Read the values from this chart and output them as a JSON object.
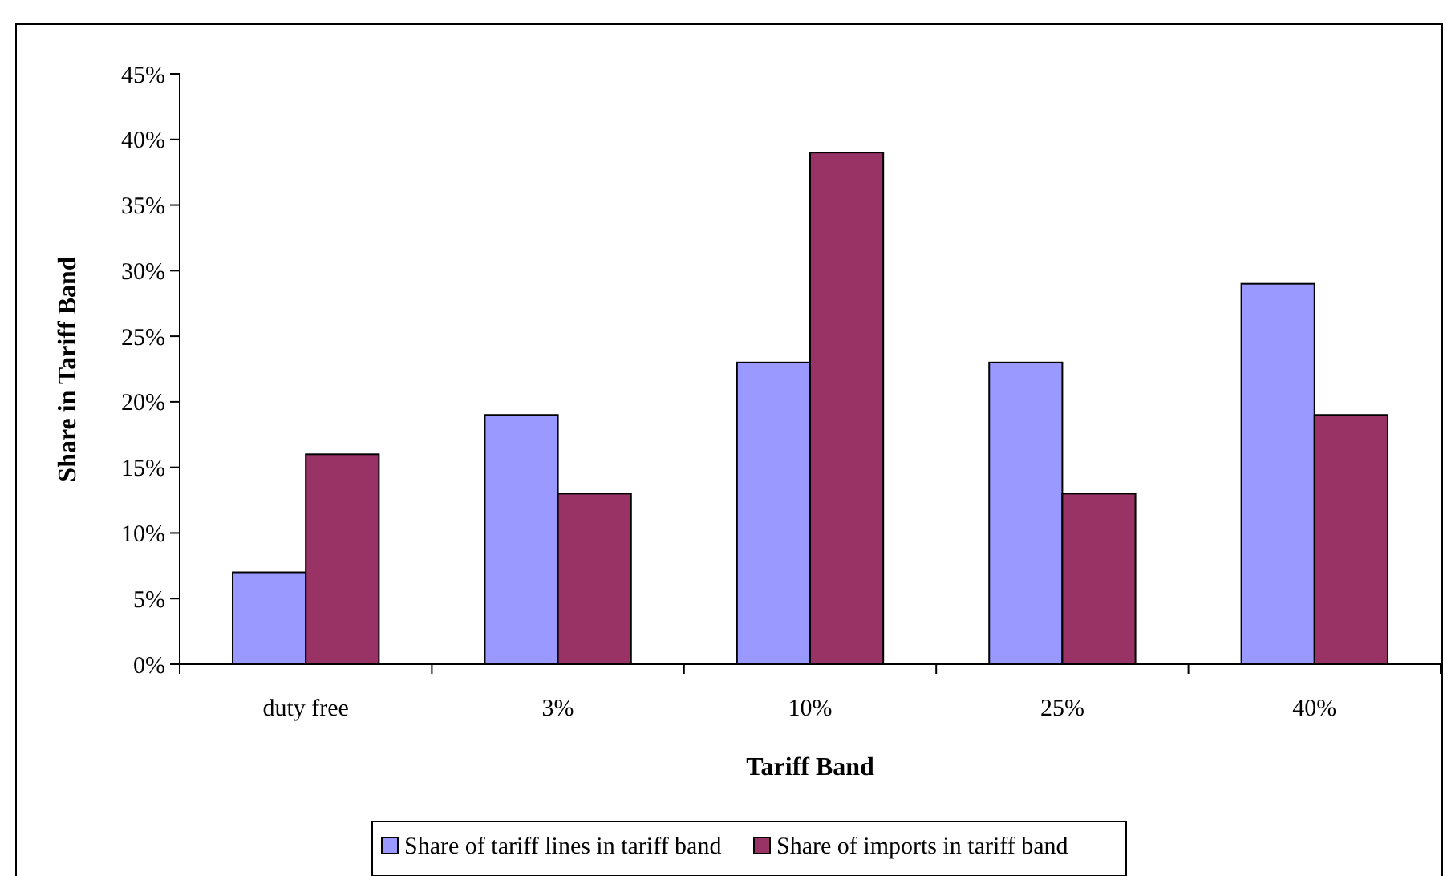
{
  "chart_data": {
    "type": "bar",
    "xlabel": "Tariff Band",
    "ylabel": "Share in Tariff Band",
    "categories": [
      "duty free",
      "3%",
      "10%",
      "25%",
      "40%"
    ],
    "series": [
      {
        "name": "Share of tariff lines in tariff band",
        "color": "#9999ff",
        "values": [
          7,
          19,
          23,
          23,
          29
        ]
      },
      {
        "name": "Share of imports in tariff band",
        "color": "#993366",
        "values": [
          16,
          13,
          39,
          13,
          19
        ]
      }
    ],
    "ylim": [
      0,
      45
    ],
    "yticks": [
      {
        "value": 0,
        "label": "0%"
      },
      {
        "value": 5,
        "label": "5%"
      },
      {
        "value": 10,
        "label": "10%"
      },
      {
        "value": 15,
        "label": "15%"
      },
      {
        "value": 20,
        "label": "20%"
      },
      {
        "value": 25,
        "label": "25%"
      },
      {
        "value": 30,
        "label": "30%"
      },
      {
        "value": 35,
        "label": "35%"
      },
      {
        "value": 40,
        "label": "40%"
      },
      {
        "value": 45,
        "label": "45%"
      }
    ],
    "grid": false,
    "legend": "bottom"
  }
}
